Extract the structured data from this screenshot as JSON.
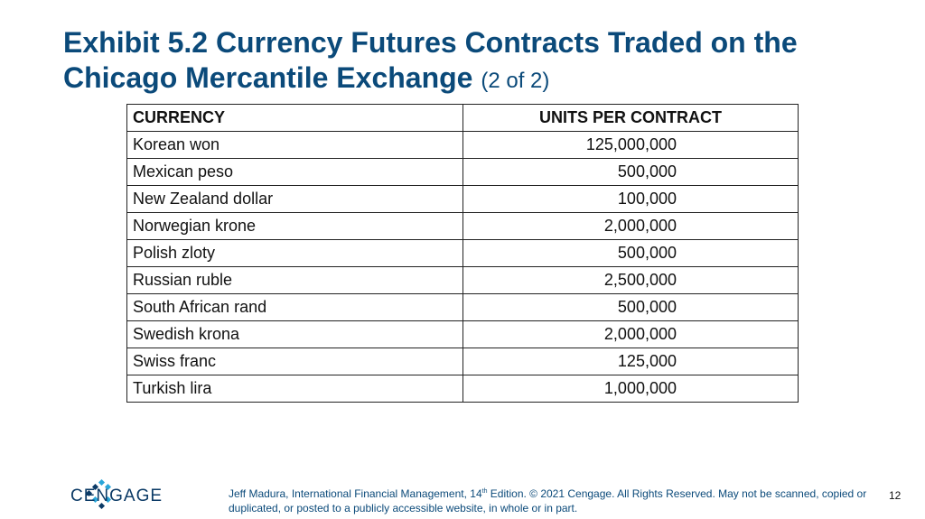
{
  "slide": {
    "title_main": "Exhibit 5.2 Currency Futures Contracts Traded on the Chicago Mercantile Exchange",
    "title_sub": "(2 of 2)"
  },
  "table": {
    "headers": {
      "currency": "CURRENCY",
      "units": "UNITS PER CONTRACT"
    },
    "rows": [
      {
        "currency": "Korean won",
        "units": "125,000,000"
      },
      {
        "currency": "Mexican peso",
        "units": "500,000"
      },
      {
        "currency": "New Zealand dollar",
        "units": "100,000"
      },
      {
        "currency": "Norwegian krone",
        "units": "2,000,000"
      },
      {
        "currency": "Polish zloty",
        "units": "500,000"
      },
      {
        "currency": "Russian ruble",
        "units": "2,500,000"
      },
      {
        "currency": "South African rand",
        "units": "500,000"
      },
      {
        "currency": "Swedish krona",
        "units": "2,000,000"
      },
      {
        "currency": "Swiss franc",
        "units": "125,000"
      },
      {
        "currency": "Turkish lira",
        "units": "1,000,000"
      }
    ]
  },
  "footer": {
    "logo_text": "CENGAGE",
    "citation_pre": "Jeff Madura, International Financial Management, 14",
    "citation_sup": "th",
    "citation_post": " Edition. © 2021 Cengage. All Rights Reserved. May not be scanned, copied or duplicated, or posted to a publicly accessible website, in whole or in part.",
    "page_number": "12"
  },
  "colors": {
    "title": "#0b4a7a",
    "logo_dark": "#0b3a66",
    "logo_light": "#2aa6d9"
  }
}
